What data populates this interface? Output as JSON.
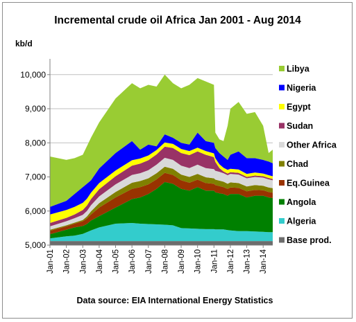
{
  "chart_data": {
    "type": "area",
    "stacked": true,
    "title": "Incremental crude oil Africa  Jan 2001 - Aug 2014",
    "ylabel": "kb/d",
    "xlabel": "",
    "ylim": [
      5000,
      10300
    ],
    "yticks": [
      5000,
      6000,
      7000,
      8000,
      9000,
      10000
    ],
    "ytick_labels": [
      "5,000",
      "6,000",
      "7,000",
      "8,000",
      "9,000",
      "10,000"
    ],
    "x_start": "2001-01",
    "x_end": "2014-08",
    "xtick_labels": [
      "Jan-01",
      "Jan-02",
      "Jan-03",
      "Jan-04",
      "Jan-05",
      "Jan-06",
      "Jan-07",
      "Jan-08",
      "Jan-09",
      "Jan-10",
      "Jan-11",
      "Jan-12",
      "Jan-13",
      "Jan-14"
    ],
    "legend_position": "right",
    "source": "Data source: EIA International Energy Statistics",
    "cumulative_top_kbd": {
      "x": [
        "2001-01",
        "2002-01",
        "2002-07",
        "2003-01",
        "2003-04",
        "2003-07",
        "2004-01",
        "2005-01",
        "2006-01",
        "2006-07",
        "2007-01",
        "2007-07",
        "2008-01",
        "2008-07",
        "2009-01",
        "2009-07",
        "2010-01",
        "2010-07",
        "2011-01",
        "2011-02",
        "2011-05",
        "2011-08",
        "2011-11",
        "2012-01",
        "2012-07",
        "2013-01",
        "2013-07",
        "2014-01",
        "2014-05",
        "2014-08"
      ],
      "series": [
        {
          "name": "Base prod.",
          "values": [
            5120,
            5120,
            5120,
            5120,
            5120,
            5120,
            5120,
            5120,
            5120,
            5120,
            5120,
            5120,
            5120,
            5120,
            5120,
            5120,
            5120,
            5120,
            5120,
            5120,
            5120,
            5120,
            5120,
            5120,
            5120,
            5120,
            5120,
            5120,
            5120,
            5120
          ]
        },
        {
          "name": "Algeria",
          "values": [
            5200,
            5260,
            5280,
            5330,
            5380,
            5430,
            5520,
            5630,
            5650,
            5630,
            5620,
            5610,
            5600,
            5580,
            5500,
            5490,
            5480,
            5470,
            5470,
            5460,
            5460,
            5460,
            5440,
            5430,
            5410,
            5410,
            5400,
            5390,
            5380,
            5380
          ]
        },
        {
          "name": "Angola",
          "values": [
            5320,
            5450,
            5520,
            5560,
            5620,
            5720,
            5850,
            6100,
            6350,
            6400,
            6500,
            6650,
            6850,
            6800,
            6650,
            6600,
            6700,
            6600,
            6600,
            6550,
            6520,
            6500,
            6450,
            6500,
            6500,
            6400,
            6450,
            6450,
            6400,
            6380
          ]
        },
        {
          "name": "Eq.Guinea",
          "values": [
            5420,
            5550,
            5630,
            5700,
            5780,
            5900,
            6100,
            6400,
            6650,
            6700,
            6780,
            6930,
            7120,
            7060,
            6900,
            6830,
            6920,
            6820,
            6800,
            6760,
            6730,
            6700,
            6650,
            6690,
            6680,
            6580,
            6620,
            6610,
            6560,
            6540
          ]
        },
        {
          "name": "Chad",
          "values": [
            5450,
            5580,
            5660,
            5740,
            5840,
            5990,
            6230,
            6560,
            6830,
            6880,
            6960,
            7110,
            7300,
            7240,
            7070,
            7000,
            7090,
            6990,
            6960,
            6920,
            6890,
            6860,
            6800,
            6840,
            6820,
            6720,
            6760,
            6740,
            6690,
            6670
          ]
        },
        {
          "name": "Other Africa",
          "values": [
            5550,
            5700,
            5790,
            5890,
            6000,
            6170,
            6430,
            6780,
            7060,
            7110,
            7200,
            7360,
            7560,
            7500,
            7330,
            7260,
            7360,
            7260,
            7230,
            7180,
            7150,
            7110,
            7050,
            7090,
            7070,
            6960,
            7000,
            6980,
            6930,
            6900
          ]
        },
        {
          "name": "Sudan",
          "values": [
            5650,
            5800,
            5900,
            6030,
            6160,
            6350,
            6640,
            7020,
            7330,
            7390,
            7490,
            7660,
            7890,
            7850,
            7700,
            7640,
            7750,
            7650,
            7580,
            7440,
            7260,
            7160,
            7100,
            7140,
            7120,
            7000,
            7040,
            7020,
            6970,
            6940
          ]
        },
        {
          "name": "Egypt",
          "values": [
            5900,
            6030,
            6120,
            6240,
            6360,
            6540,
            6820,
            7190,
            7490,
            7540,
            7630,
            7790,
            8010,
            7970,
            7820,
            7760,
            7860,
            7760,
            7690,
            7550,
            7370,
            7270,
            7210,
            7240,
            7220,
            7090,
            7130,
            7100,
            7050,
            7020
          ]
        },
        {
          "name": "Nigeria",
          "values": [
            6120,
            6300,
            6500,
            6700,
            6800,
            6900,
            7250,
            7700,
            8050,
            7800,
            7950,
            7900,
            8250,
            8150,
            8000,
            7950,
            8300,
            8050,
            8000,
            7850,
            7700,
            7600,
            7500,
            7650,
            7750,
            7550,
            7550,
            7500,
            7450,
            7400
          ]
        },
        {
          "name": "Libya",
          "values": [
            7600,
            7500,
            7550,
            7650,
            7900,
            8150,
            8600,
            9300,
            9750,
            9600,
            9700,
            9650,
            10000,
            9750,
            9600,
            9700,
            9900,
            9800,
            9700,
            8300,
            8100,
            8050,
            8500,
            9000,
            9200,
            8850,
            8900,
            8500,
            7700,
            7800
          ]
        }
      ]
    },
    "series_colors": {
      "Base prod.": "#6d6d6d",
      "Algeria": "#33cccc",
      "Angola": "#008000",
      "Eq.Guinea": "#993300",
      "Chad": "#808000",
      "Other Africa": "#d9d9d9",
      "Sudan": "#993366",
      "Egypt": "#ffff00",
      "Nigeria": "#0000ff",
      "Libya": "#99cc33"
    },
    "legend_order": [
      "Libya",
      "Nigeria",
      "Egypt",
      "Sudan",
      "Other Africa",
      "Chad",
      "Eq.Guinea",
      "Angola",
      "Algeria",
      "Base prod."
    ]
  }
}
